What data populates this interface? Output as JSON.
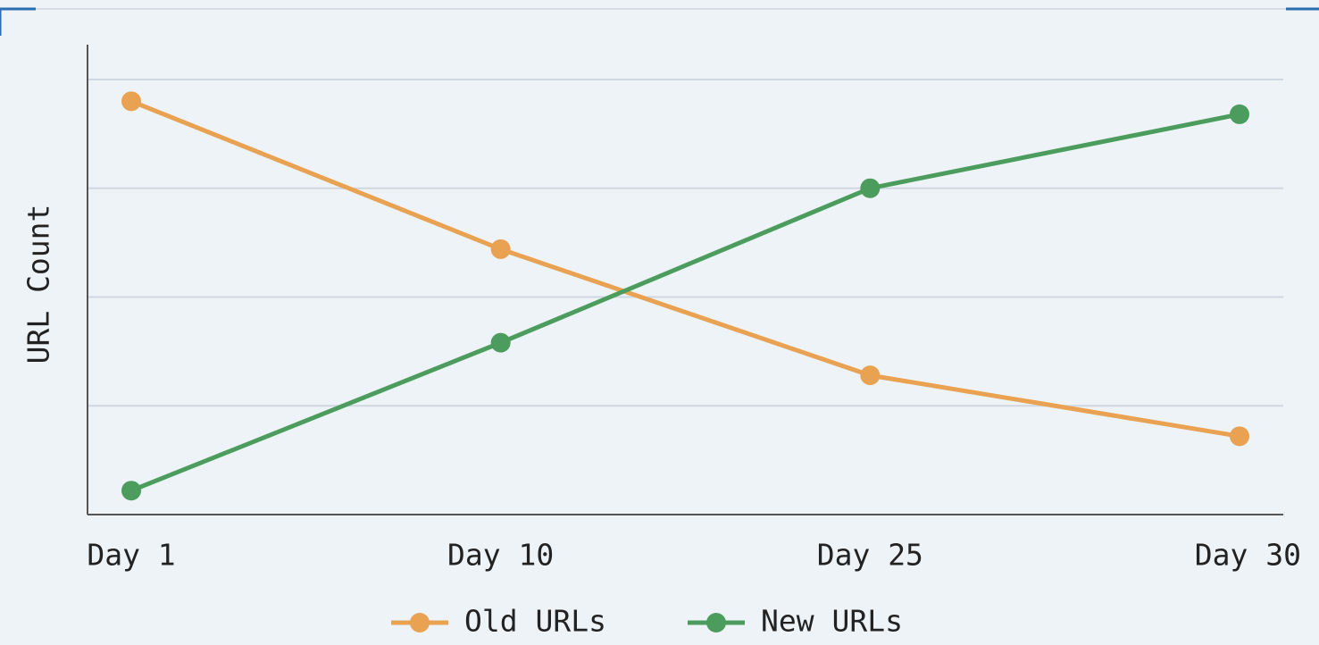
{
  "chart_data": {
    "type": "line",
    "y_label": "URL Count",
    "categories": [
      "Day 1",
      "Day 10",
      "Day 25",
      "Day 30"
    ],
    "series": [
      {
        "name": "Old URLs",
        "color": "#e9a152",
        "values": [
          95,
          61,
          32,
          18
        ]
      },
      {
        "name": "New URLs",
        "color": "#4c9d5d",
        "values": [
          5.5,
          39.5,
          75,
          92
        ]
      }
    ],
    "ylim": [
      0,
      108
    ],
    "yticks": [
      25,
      50,
      75,
      100
    ],
    "grid": true,
    "legend": "bottom"
  }
}
